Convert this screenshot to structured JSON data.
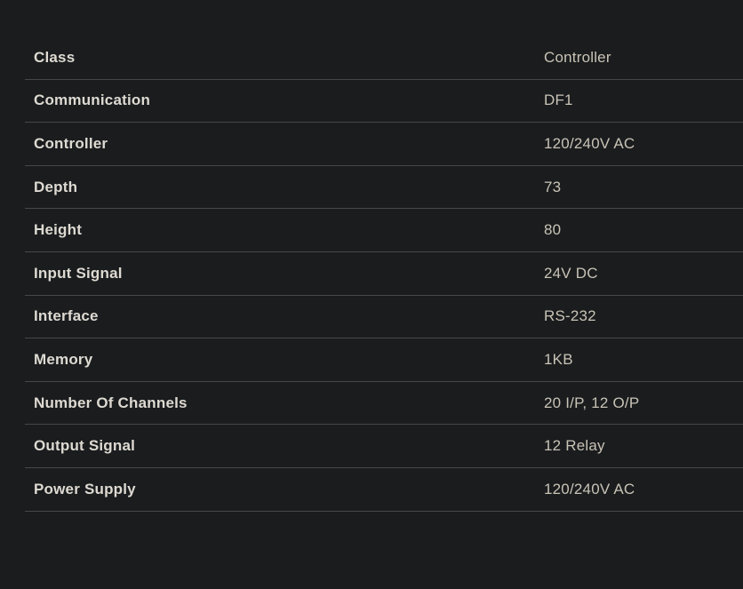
{
  "page": {
    "background_color": "#1a1c1e",
    "divider_color": "#45474a",
    "label_color": "#dedad2",
    "value_color": "#c9c3b6"
  },
  "spec_table": {
    "rows": [
      {
        "label": "Class",
        "value": "Controller"
      },
      {
        "label": "Communication",
        "value": "DF1"
      },
      {
        "label": "Controller",
        "value": "120/240V AC"
      },
      {
        "label": "Depth",
        "value": "73"
      },
      {
        "label": "Height",
        "value": "80"
      },
      {
        "label": "Input Signal",
        "value": "24V DC"
      },
      {
        "label": "Interface",
        "value": "RS-232"
      },
      {
        "label": "Memory",
        "value": "1KB"
      },
      {
        "label": "Number Of Channels",
        "value": "20 I/P, 12 O/P"
      },
      {
        "label": "Output Signal",
        "value": "12 Relay"
      },
      {
        "label": "Power Supply",
        "value": "120/240V AC"
      }
    ]
  }
}
